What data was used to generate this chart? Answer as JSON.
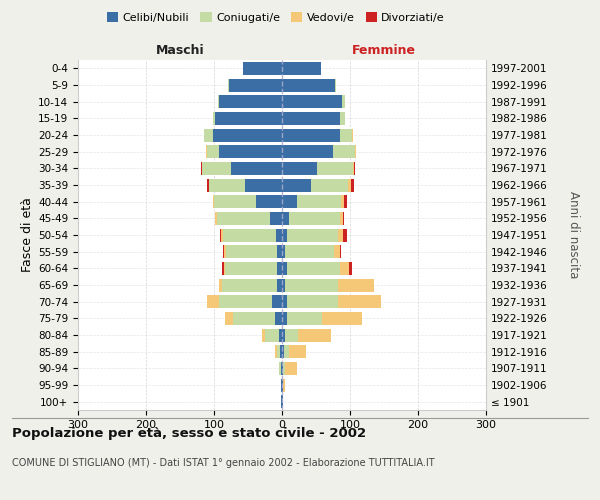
{
  "age_groups": [
    "100+",
    "95-99",
    "90-94",
    "85-89",
    "80-84",
    "75-79",
    "70-74",
    "65-69",
    "60-64",
    "55-59",
    "50-54",
    "45-49",
    "40-44",
    "35-39",
    "30-34",
    "25-29",
    "20-24",
    "15-19",
    "10-14",
    "5-9",
    "0-4"
  ],
  "birth_years": [
    "≤ 1901",
    "1902-1906",
    "1907-1911",
    "1912-1916",
    "1917-1921",
    "1922-1926",
    "1927-1931",
    "1932-1936",
    "1937-1941",
    "1942-1946",
    "1947-1951",
    "1952-1956",
    "1957-1961",
    "1962-1966",
    "1967-1971",
    "1972-1976",
    "1977-1981",
    "1982-1986",
    "1987-1991",
    "1992-1996",
    "1997-2001"
  ],
  "maschi": {
    "celibi": [
      1,
      1,
      2,
      3,
      5,
      10,
      15,
      8,
      8,
      7,
      9,
      18,
      38,
      55,
      75,
      92,
      102,
      98,
      92,
      78,
      58
    ],
    "coniugati": [
      0,
      0,
      2,
      5,
      20,
      62,
      78,
      80,
      76,
      76,
      78,
      78,
      62,
      52,
      42,
      18,
      12,
      4,
      2,
      1,
      0
    ],
    "vedovi": [
      0,
      0,
      0,
      2,
      5,
      12,
      18,
      5,
      2,
      2,
      2,
      2,
      1,
      1,
      1,
      2,
      1,
      0,
      0,
      0,
      0
    ],
    "divorziati": [
      0,
      0,
      0,
      0,
      0,
      0,
      0,
      0,
      2,
      2,
      2,
      1,
      1,
      3,
      1,
      0,
      0,
      0,
      0,
      0,
      0
    ]
  },
  "femmine": {
    "nubili": [
      1,
      1,
      2,
      3,
      4,
      7,
      8,
      5,
      7,
      5,
      8,
      10,
      22,
      42,
      52,
      75,
      85,
      85,
      88,
      78,
      58
    ],
    "coniugate": [
      0,
      0,
      2,
      8,
      20,
      52,
      75,
      78,
      78,
      72,
      75,
      75,
      65,
      55,
      52,
      32,
      18,
      7,
      4,
      1,
      0
    ],
    "vedove": [
      0,
      3,
      18,
      25,
      48,
      58,
      62,
      52,
      14,
      8,
      7,
      4,
      4,
      4,
      2,
      2,
      1,
      0,
      0,
      0,
      0
    ],
    "divorziate": [
      0,
      0,
      0,
      0,
      0,
      0,
      0,
      0,
      4,
      2,
      5,
      2,
      5,
      5,
      2,
      0,
      0,
      0,
      0,
      0,
      0
    ]
  },
  "colors": {
    "celibi": "#3a6ea5",
    "coniugati": "#c5dba4",
    "vedovi": "#f5c877",
    "divorziati": "#cc2222"
  },
  "xlim": 300,
  "title": "Popolazione per età, sesso e stato civile - 2002",
  "subtitle": "COMUNE DI STIGLIANO (MT) - Dati ISTAT 1° gennaio 2002 - Elaborazione TUTTITALIA.IT",
  "ylabel_left": "Fasce di età",
  "ylabel_right": "Anni di nascita",
  "xlabel_maschi": "Maschi",
  "xlabel_femmine": "Femmine",
  "legend_labels": [
    "Celibi/Nubili",
    "Coniugati/e",
    "Vedovi/e",
    "Divorziati/e"
  ],
  "bg_color": "#f0f0eb",
  "plot_bg": "#ffffff",
  "grid_color": "#cccccc"
}
